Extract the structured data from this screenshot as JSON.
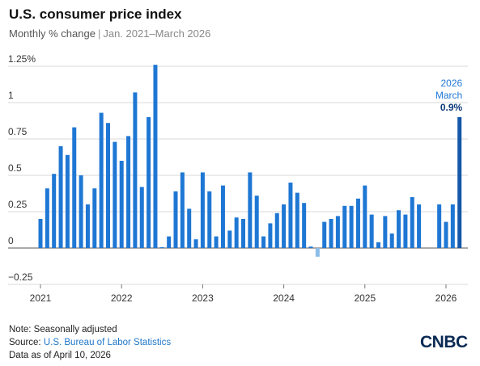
{
  "header": {
    "title": "U.S. consumer price index",
    "subtitle_measure": "Monthly % change",
    "subtitle_separator": "|",
    "subtitle_range": "Jan. 2021–March 2026"
  },
  "footer": {
    "note": "Note: Seasonally adjusted",
    "source_prefix": "Source: ",
    "source_name": "U.S. Bureau of Labor Statistics",
    "asof": "Data as of April 10, 2026"
  },
  "logo": {
    "text": "CNBC"
  },
  "colors": {
    "bar": "#1f77d4",
    "bar_highlight": "#1557a8",
    "bar_negative": "#8bbde8",
    "grid": "#d9d9d9",
    "zero_line": "#555555",
    "label_blue": "#1f77d4",
    "label_dark": "#0d3a7a"
  },
  "chart_data": {
    "type": "bar",
    "x": [
      "2021-01",
      "2021-02",
      "2021-03",
      "2021-04",
      "2021-05",
      "2021-06",
      "2021-07",
      "2021-08",
      "2021-09",
      "2021-10",
      "2021-11",
      "2021-12",
      "2022-01",
      "2022-02",
      "2022-03",
      "2022-04",
      "2022-05",
      "2022-06",
      "2022-07",
      "2022-08",
      "2022-09",
      "2022-10",
      "2022-11",
      "2022-12",
      "2023-01",
      "2023-02",
      "2023-03",
      "2023-04",
      "2023-05",
      "2023-06",
      "2023-07",
      "2023-08",
      "2023-09",
      "2023-10",
      "2023-11",
      "2023-12",
      "2024-01",
      "2024-02",
      "2024-03",
      "2024-04",
      "2024-05",
      "2024-06",
      "2024-07",
      "2024-08",
      "2024-09",
      "2024-10",
      "2024-11",
      "2024-12",
      "2025-01",
      "2025-02",
      "2025-03",
      "2025-04",
      "2025-05",
      "2025-06",
      "2025-07",
      "2025-08",
      "2025-09",
      "2025-10",
      "2025-11",
      "2025-12",
      "2026-01",
      "2026-02",
      "2026-03"
    ],
    "values": [
      0.2,
      0.41,
      0.51,
      0.7,
      0.64,
      0.83,
      0.5,
      0.3,
      0.41,
      0.93,
      0.86,
      0.73,
      0.6,
      0.77,
      1.07,
      0.42,
      0.9,
      1.26,
      0.0,
      0.08,
      0.39,
      0.52,
      0.27,
      0.06,
      0.52,
      0.39,
      0.08,
      0.43,
      0.12,
      0.21,
      0.2,
      0.52,
      0.36,
      0.08,
      0.17,
      0.24,
      0.3,
      0.45,
      0.38,
      0.31,
      0.01,
      -0.06,
      0.18,
      0.2,
      0.22,
      0.29,
      0.29,
      0.34,
      0.43,
      0.23,
      0.04,
      0.22,
      0.1,
      0.26,
      0.23,
      0.35,
      0.3,
      null,
      null,
      0.3,
      0.18,
      0.3,
      0.9
    ],
    "ylim": [
      -0.25,
      1.25
    ],
    "yticks": [
      1.25,
      1,
      0.75,
      0.5,
      0.25,
      0,
      -0.25
    ],
    "ytick_labels": [
      "1.25%",
      "1",
      "0.75",
      "0.5",
      "0.25",
      "0",
      "−0.25"
    ],
    "xtick_labels": [
      "2021",
      "2022",
      "2023",
      "2024",
      "2025",
      "2026"
    ],
    "annotation": {
      "year": "2026",
      "month": "March",
      "value": "0.9%"
    },
    "grid": true,
    "xlabel": "",
    "ylabel": ""
  }
}
